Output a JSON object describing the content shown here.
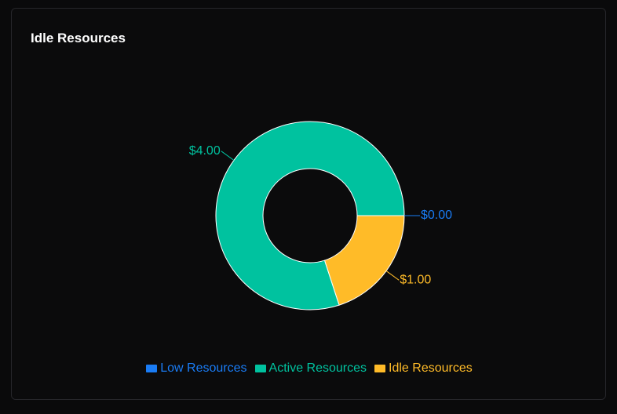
{
  "card": {
    "title": "Idle Resources"
  },
  "chart_data": {
    "type": "pie",
    "donut": true,
    "title": "Idle Resources",
    "categories": [
      "Low Resources",
      "Active Resources",
      "Idle Resources"
    ],
    "values": [
      0,
      4,
      1
    ],
    "data_labels": [
      "$0.00",
      "$4.00",
      "$1.00"
    ],
    "colors": [
      "#1a7cf5",
      "#00c29f",
      "#ffbb28"
    ],
    "legend_position": "bottom"
  }
}
